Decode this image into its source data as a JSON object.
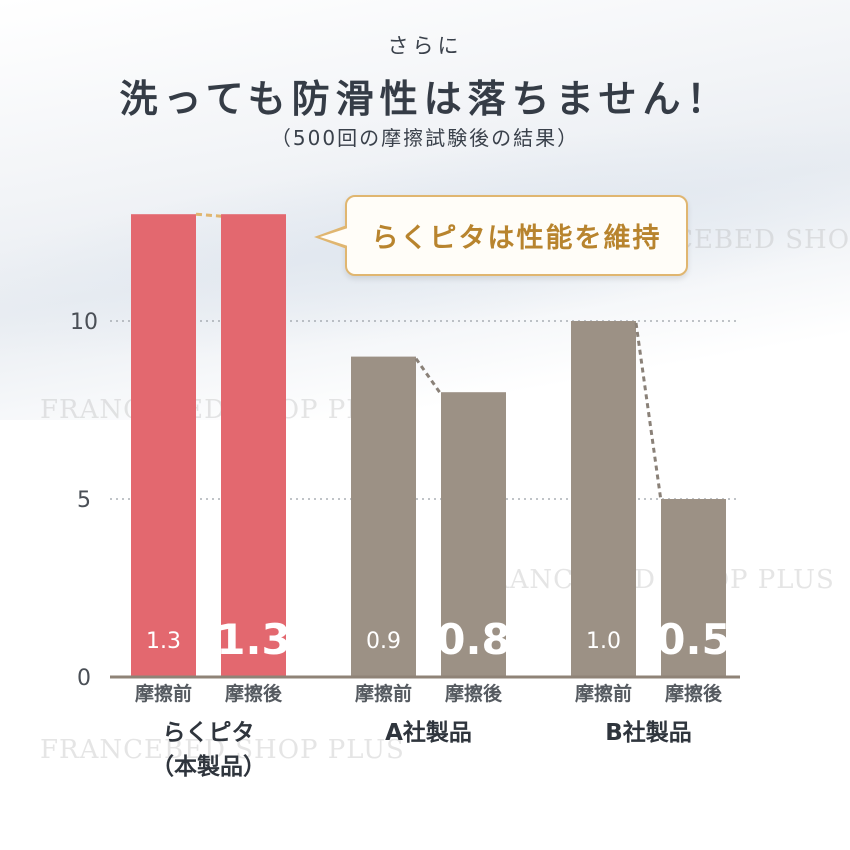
{
  "header": {
    "pre_title": "さらに",
    "title": "洗っても防滑性は落ちません！",
    "subtitle": "（500回の摩擦試験後の結果）"
  },
  "callout": {
    "text": "らくピタは性能を維持"
  },
  "watermark": "FRANCEBED SHOP PLUS",
  "colors": {
    "highlight": "#e3686f",
    "others": "#9c9185",
    "axis": "#8f8377",
    "callout_border": "#e0b670",
    "callout_text": "#b8842e"
  },
  "chart_data": {
    "type": "bar",
    "ylim": [
      0,
      13
    ],
    "yticks": [
      "0",
      "5",
      "10"
    ],
    "ytick_values": [
      0,
      5,
      10
    ],
    "grid": "dotted horizontal at 5 and 10",
    "groups": [
      {
        "label": "らくピタ\n（本製品）",
        "label_lines": [
          "らくピタ",
          "（本製品）"
        ],
        "color": "#e3686f",
        "bars": [
          {
            "category": "摩擦前",
            "value": 1.3,
            "label": "1.3"
          },
          {
            "category": "摩擦後",
            "value": 1.3,
            "label": "1.3"
          }
        ]
      },
      {
        "label": "A社製品",
        "label_lines": [
          "A社製品"
        ],
        "color": "#9c9185",
        "bars": [
          {
            "category": "摩擦前",
            "value": 0.9,
            "label": "0.9"
          },
          {
            "category": "摩擦後",
            "value": 0.8,
            "label": "0.8"
          }
        ]
      },
      {
        "label": "B社製品",
        "label_lines": [
          "B社製品"
        ],
        "color": "#9c9185",
        "bars": [
          {
            "category": "摩擦前",
            "value": 1.0,
            "label": "1.0"
          },
          {
            "category": "摩擦後",
            "value": 0.5,
            "label": "0.5"
          }
        ]
      }
    ]
  }
}
